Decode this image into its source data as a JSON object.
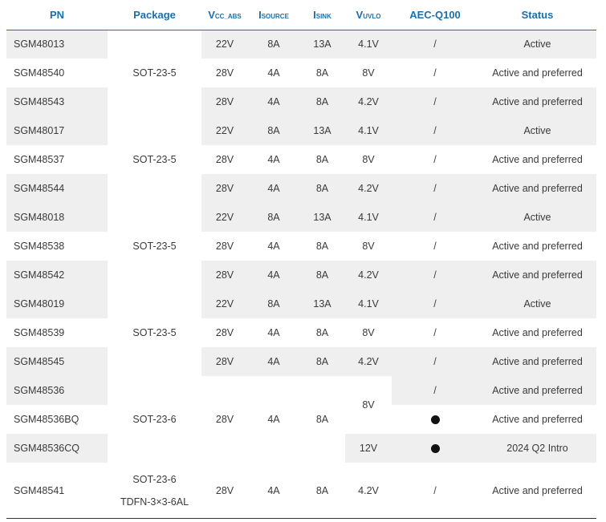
{
  "headers": {
    "pn": "PN",
    "package": "Package",
    "vcc_main": "V",
    "vcc_sub": "CC_ABS",
    "isource_main": "I",
    "isource_sub": "SOURCE",
    "isink_main": "I",
    "isink_sub": "SINK",
    "vuvlo_main": "V",
    "vuvlo_sub": "UVLO",
    "aec": "AEC-Q100",
    "status": "Status"
  },
  "groups": [
    {
      "package": "SOT-23-5",
      "rows": [
        {
          "pn": "SGM48013",
          "vcc": "22V",
          "isource": "8A",
          "isink": "13A",
          "vuvlo": "4.1V",
          "aec": "/",
          "status": "Active"
        },
        {
          "pn": "SGM48540",
          "vcc": "28V",
          "isource": "4A",
          "isink": "8A",
          "vuvlo": "8V",
          "aec": "/",
          "status": "Active and preferred"
        },
        {
          "pn": "SGM48543",
          "vcc": "28V",
          "isource": "4A",
          "isink": "8A",
          "vuvlo": "4.2V",
          "aec": "/",
          "status": "Active and preferred"
        }
      ]
    },
    {
      "package": "SOT-23-5",
      "rows": [
        {
          "pn": "SGM48017",
          "vcc": "22V",
          "isource": "8A",
          "isink": "13A",
          "vuvlo": "4.1V",
          "aec": "/",
          "status": "Active"
        },
        {
          "pn": "SGM48537",
          "vcc": "28V",
          "isource": "4A",
          "isink": "8A",
          "vuvlo": "8V",
          "aec": "/",
          "status": "Active and preferred"
        },
        {
          "pn": "SGM48544",
          "vcc": "28V",
          "isource": "4A",
          "isink": "8A",
          "vuvlo": "4.2V",
          "aec": "/",
          "status": "Active and preferred"
        }
      ]
    },
    {
      "package": "SOT-23-5",
      "rows": [
        {
          "pn": "SGM48018",
          "vcc": "22V",
          "isource": "8A",
          "isink": "13A",
          "vuvlo": "4.1V",
          "aec": "/",
          "status": "Active"
        },
        {
          "pn": "SGM48538",
          "vcc": "28V",
          "isource": "4A",
          "isink": "8A",
          "vuvlo": "8V",
          "aec": "/",
          "status": "Active and preferred"
        },
        {
          "pn": "SGM48542",
          "vcc": "28V",
          "isource": "4A",
          "isink": "8A",
          "vuvlo": "4.2V",
          "aec": "/",
          "status": "Active and preferred"
        }
      ]
    },
    {
      "package": "SOT-23-5",
      "rows": [
        {
          "pn": "SGM48019",
          "vcc": "22V",
          "isource": "8A",
          "isink": "13A",
          "vuvlo": "4.1V",
          "aec": "/",
          "status": "Active"
        },
        {
          "pn": "SGM48539",
          "vcc": "28V",
          "isource": "4A",
          "isink": "8A",
          "vuvlo": "8V",
          "aec": "/",
          "status": "Active and preferred"
        },
        {
          "pn": "SGM48545",
          "vcc": "28V",
          "isource": "4A",
          "isink": "8A",
          "vuvlo": "4.2V",
          "aec": "/",
          "status": "Active and preferred"
        }
      ]
    }
  ],
  "group5": {
    "package": "SOT-23-6",
    "vcc": "28V",
    "isource": "4A",
    "isink": "8A",
    "vuvlo_shared": "8V",
    "rows": [
      {
        "pn": "SGM48536",
        "aec": "/",
        "status": "Active and preferred"
      },
      {
        "pn": "SGM48536BQ",
        "aec": "●",
        "status": "Active and preferred"
      },
      {
        "pn": "SGM48536CQ",
        "vuvlo": "12V",
        "aec": "●",
        "status": "2024 Q2 Intro"
      }
    ]
  },
  "last": {
    "pn": "SGM48541",
    "package_line1": "SOT-23-6",
    "package_line2": "TDFN-3×3-6AL",
    "vcc": "28V",
    "isource": "4A",
    "isink": "8A",
    "vuvlo": "4.2V",
    "aec": "/",
    "status": "Active and preferred"
  },
  "colors": {
    "header_text": "#1a6fae",
    "row_shade": "#efefef",
    "body_text": "#3a3a3a"
  }
}
